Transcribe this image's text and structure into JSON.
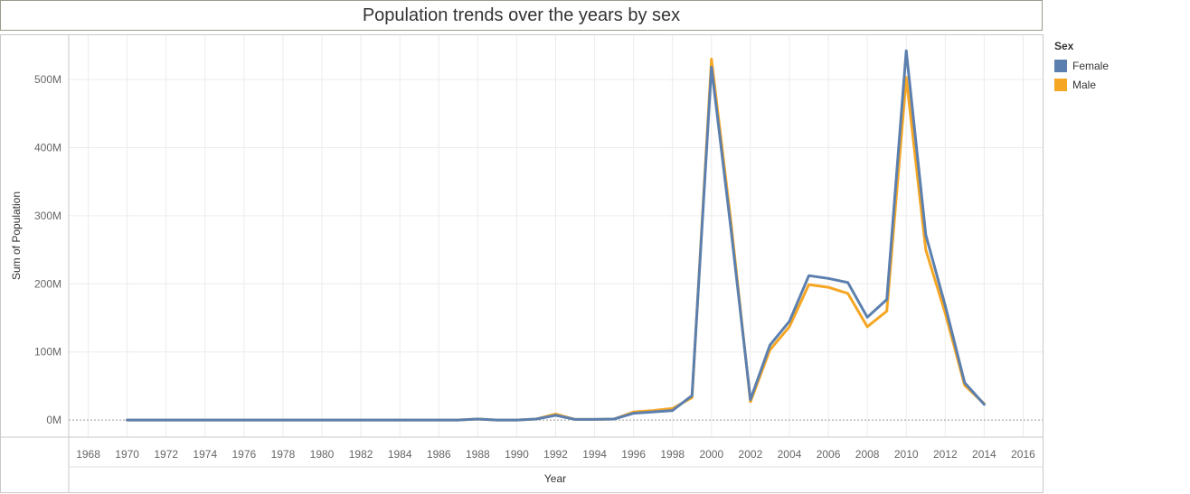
{
  "title": "Population trends over the years by sex",
  "legend": {
    "title": "Sex",
    "items": [
      {
        "label": "Female",
        "color": "#5b7fae"
      },
      {
        "label": "Male",
        "color": "#f5a623"
      }
    ]
  },
  "chart_data": {
    "type": "line",
    "xlabel": "Year",
    "ylabel": "Sum of Population",
    "xlim": [
      1967,
      2017
    ],
    "ylim": [
      -25000000,
      565000000
    ],
    "x_ticks": [
      1968,
      1970,
      1972,
      1974,
      1976,
      1978,
      1980,
      1982,
      1984,
      1986,
      1988,
      1990,
      1992,
      1994,
      1996,
      1998,
      2000,
      2002,
      2004,
      2006,
      2008,
      2010,
      2012,
      2014,
      2016
    ],
    "y_ticks": [
      {
        "value": 0,
        "label": "0M"
      },
      {
        "value": 100000000,
        "label": "100M"
      },
      {
        "value": 200000000,
        "label": "200M"
      },
      {
        "value": 300000000,
        "label": "300M"
      },
      {
        "value": 400000000,
        "label": "400M"
      },
      {
        "value": 500000000,
        "label": "500M"
      }
    ],
    "grid": true,
    "legend_position": "right",
    "x": [
      1970,
      1971,
      1972,
      1973,
      1974,
      1975,
      1976,
      1977,
      1978,
      1979,
      1980,
      1981,
      1982,
      1983,
      1984,
      1985,
      1986,
      1987,
      1988,
      1989,
      1990,
      1991,
      1992,
      1993,
      1994,
      1995,
      1996,
      1997,
      1998,
      1999,
      2000,
      2001,
      2002,
      2003,
      2004,
      2005,
      2006,
      2007,
      2008,
      2009,
      2010,
      2011,
      2012,
      2013,
      2014
    ],
    "series": [
      {
        "name": "Male",
        "color": "#f5a623",
        "values": [
          0,
          0,
          0,
          0,
          0,
          0,
          0,
          0,
          0,
          0,
          0,
          0,
          0,
          0,
          0,
          0,
          0,
          0,
          1500000,
          0,
          0,
          1500000,
          9000000,
          1000000,
          1000000,
          1500000,
          12000000,
          14000000,
          17000000,
          33000000,
          530000000,
          290000000,
          27000000,
          103000000,
          137000000,
          199000000,
          195000000,
          186000000,
          137000000,
          160000000,
          503000000,
          250000000,
          157000000,
          51000000,
          24000000
        ]
      },
      {
        "name": "Female",
        "color": "#5b7fae",
        "values": [
          0,
          0,
          0,
          0,
          0,
          0,
          0,
          0,
          0,
          0,
          0,
          0,
          0,
          0,
          0,
          0,
          0,
          0,
          1500000,
          0,
          0,
          1500000,
          7000000,
          1000000,
          1000000,
          1500000,
          10000000,
          12000000,
          14000000,
          36000000,
          518000000,
          280000000,
          30000000,
          110000000,
          145000000,
          212000000,
          208000000,
          202000000,
          151000000,
          177000000,
          542000000,
          272000000,
          168000000,
          55000000,
          23000000
        ]
      }
    ]
  }
}
